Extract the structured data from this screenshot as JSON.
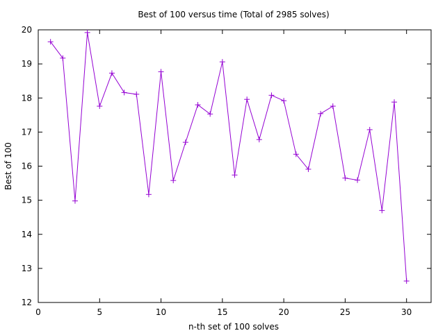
{
  "chart_data": {
    "type": "line",
    "title": "Best of 100 versus time (Total of 2985 solves)",
    "xlabel": "n-th set of 100 solves",
    "ylabel": "Best of 100",
    "xlim": [
      0,
      32
    ],
    "ylim": [
      12,
      20
    ],
    "xticks": [
      0,
      5,
      10,
      15,
      20,
      25,
      30
    ],
    "yticks": [
      12,
      13,
      14,
      15,
      16,
      17,
      18,
      19,
      20
    ],
    "grid": false,
    "series": [
      {
        "color": "#9400d3",
        "marker": "plus",
        "x": [
          1,
          2,
          3,
          4,
          5,
          6,
          7,
          8,
          9,
          10,
          11,
          12,
          13,
          14,
          15,
          16,
          17,
          18,
          19,
          20,
          21,
          22,
          23,
          24,
          25,
          26,
          27,
          28,
          29,
          30
        ],
        "y": [
          19.65,
          19.17,
          14.98,
          19.92,
          17.76,
          18.73,
          18.16,
          18.11,
          15.17,
          18.77,
          15.58,
          16.7,
          17.8,
          17.53,
          19.06,
          15.74,
          17.96,
          16.78,
          18.08,
          17.92,
          16.35,
          15.91,
          17.54,
          17.76,
          15.65,
          15.59,
          17.07,
          14.7,
          17.88,
          12.63
        ]
      }
    ]
  }
}
